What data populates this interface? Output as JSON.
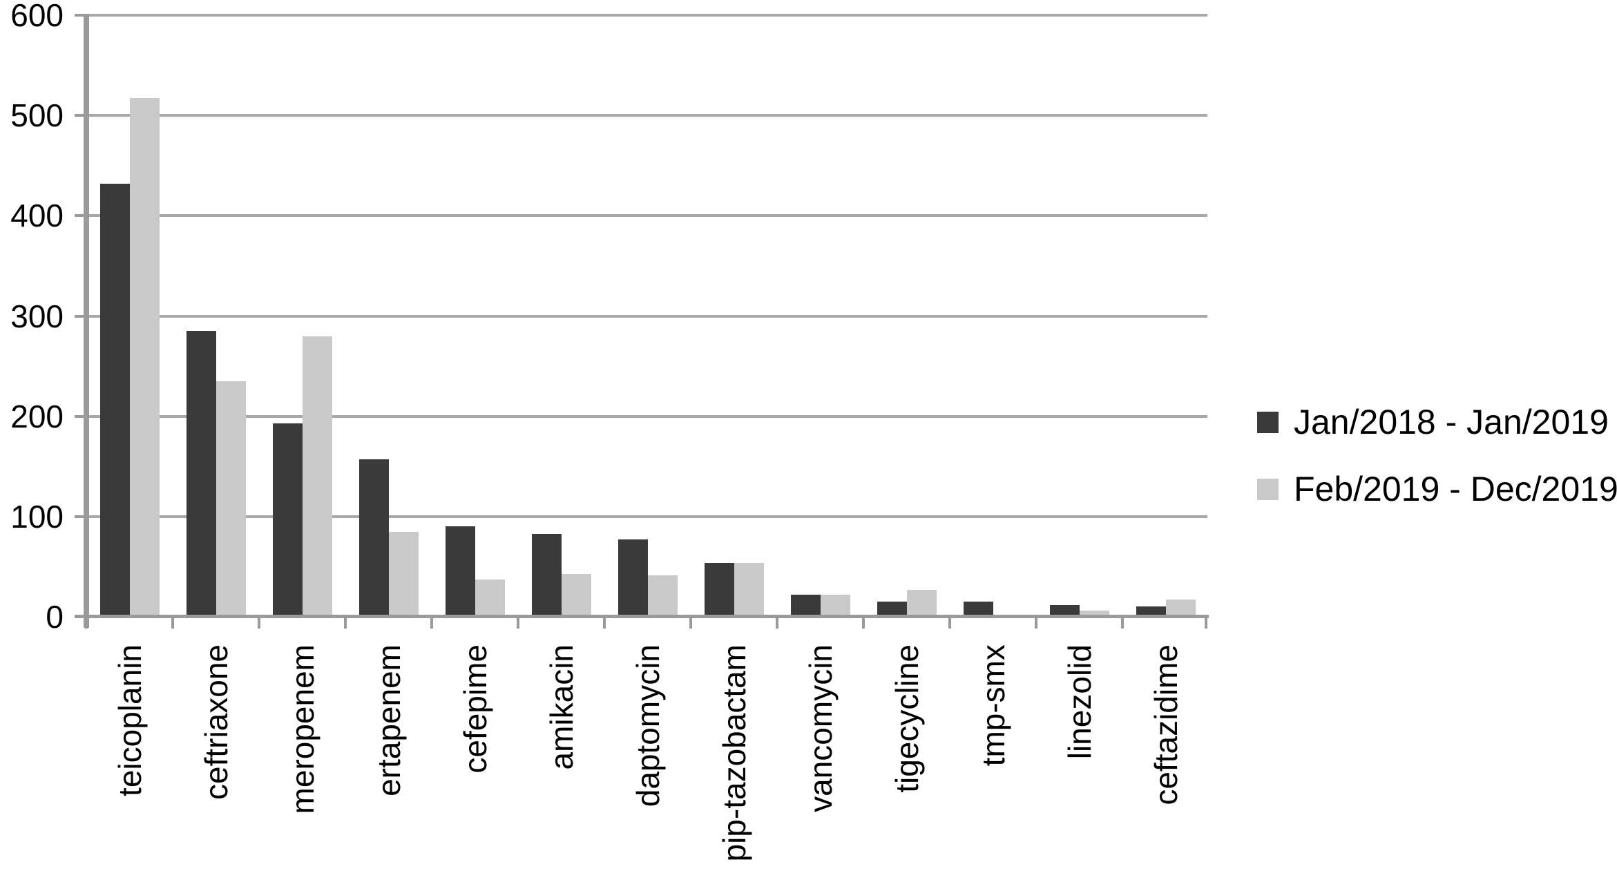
{
  "chart_data": {
    "type": "bar",
    "title": "",
    "xlabel": "",
    "ylabel": "",
    "categories": [
      "teicoplanin",
      "ceftriaxone",
      "meropenem",
      "ertapenem",
      "cefepime",
      "amikacin",
      "daptomycin",
      "pip-tazobactam",
      "vancomycin",
      "tigecycline",
      "tmp-smx",
      "linezolid",
      "ceftazidime"
    ],
    "series": [
      {
        "name": "Jan/2018 - Jan/2019",
        "color": "#3a3a3a",
        "values": [
          432,
          285,
          193,
          157,
          90,
          83,
          77,
          54,
          22,
          15,
          15,
          12,
          10
        ]
      },
      {
        "name": "Feb/2019 - Dec/2019",
        "color": "#c9c9c9",
        "values": [
          517,
          235,
          280,
          85,
          37,
          43,
          41,
          54,
          22,
          27,
          0,
          6,
          17
        ]
      }
    ],
    "ylim": [
      0,
      600
    ],
    "yticks": [
      0,
      100,
      200,
      300,
      400,
      500,
      600
    ],
    "grid": "horizontal",
    "legend_position": "right",
    "bar_orientation": "vertical",
    "x_label_rotation": "vertical-bottom-to-top"
  },
  "colors": {
    "gridline": "#a8a8a8",
    "axis": "#9a9a9a",
    "text": "#000000",
    "background": "#ffffff"
  }
}
